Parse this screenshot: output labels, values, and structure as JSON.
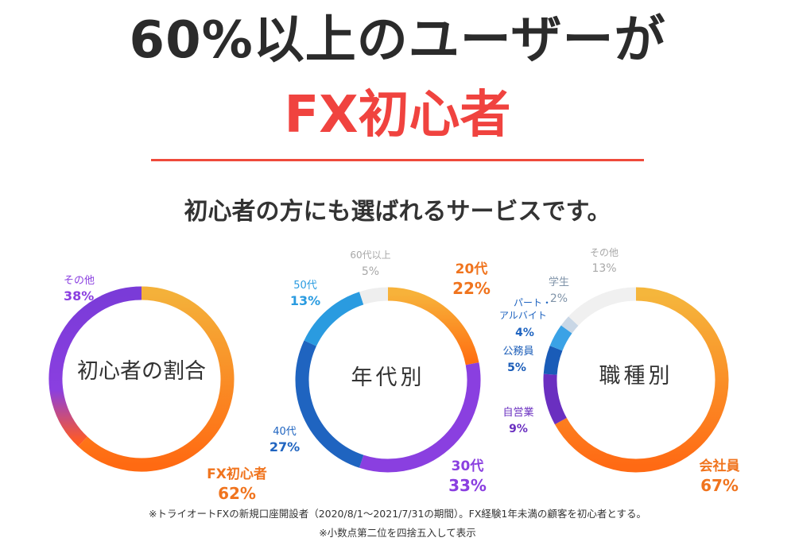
{
  "headline": {
    "line1": "60%以上のユーザーが",
    "line2": "FX初心者"
  },
  "subtitle": "初心者の方にも選ばれるサービスです。",
  "footnotes": [
    "※トライオートFXの新規口座開設者（2020/8/1〜2021/7/31の期間）。FX経験1年未満の顧客を初心者とする。",
    "※小数点第二位を四捨五入して表示"
  ],
  "chart_data": [
    {
      "type": "pie",
      "title": "初心者の割合",
      "slices": [
        {
          "label": "FX初心者",
          "value": 62,
          "value_text": "62%",
          "color": "#f58a1f"
        },
        {
          "label": "その他",
          "value": 38,
          "value_text": "38%",
          "color": "#7b3fd6"
        }
      ]
    },
    {
      "type": "pie",
      "title": "年代別",
      "slices": [
        {
          "label": "20代",
          "value": 22,
          "value_text": "22%",
          "color": "#f7831c"
        },
        {
          "label": "30代",
          "value": 33,
          "value_text": "33%",
          "color": "#8a3fe0"
        },
        {
          "label": "40代",
          "value": 27,
          "value_text": "27%",
          "color": "#1f64c0"
        },
        {
          "label": "50代",
          "value": 13,
          "value_text": "13%",
          "color": "#2a9be0"
        },
        {
          "label": "60代以上",
          "value": 5,
          "value_text": "5%",
          "color": "#eeeeee"
        }
      ]
    },
    {
      "type": "pie",
      "title": "職種別",
      "slices": [
        {
          "label": "会社員",
          "value": 67,
          "value_text": "67%",
          "color": "#f7891c"
        },
        {
          "label": "自営業",
          "value": 9,
          "value_text": "9%",
          "color": "#6a2fc0"
        },
        {
          "label": "公務員",
          "value": 5,
          "value_text": "5%",
          "color": "#1a5cb8"
        },
        {
          "label": "パート・アルバイト",
          "value": 4,
          "value_text": "4%",
          "color": "#3aa2e6"
        },
        {
          "label": "学生",
          "value": 2,
          "value_text": "2%",
          "color": "#c9d7e6"
        },
        {
          "label": "その他",
          "value": 13,
          "value_text": "13%",
          "color": "#f0f0f0"
        }
      ]
    }
  ],
  "colors": {
    "accent_red": "#f0433f",
    "label_orange": "#f0741e",
    "label_purple": "#8a3fe0",
    "label_blue_dark": "#1f64c0",
    "label_blue": "#2a9be0",
    "label_gray": "#a8a8a8",
    "label_gray_blue": "#7f93a8"
  }
}
